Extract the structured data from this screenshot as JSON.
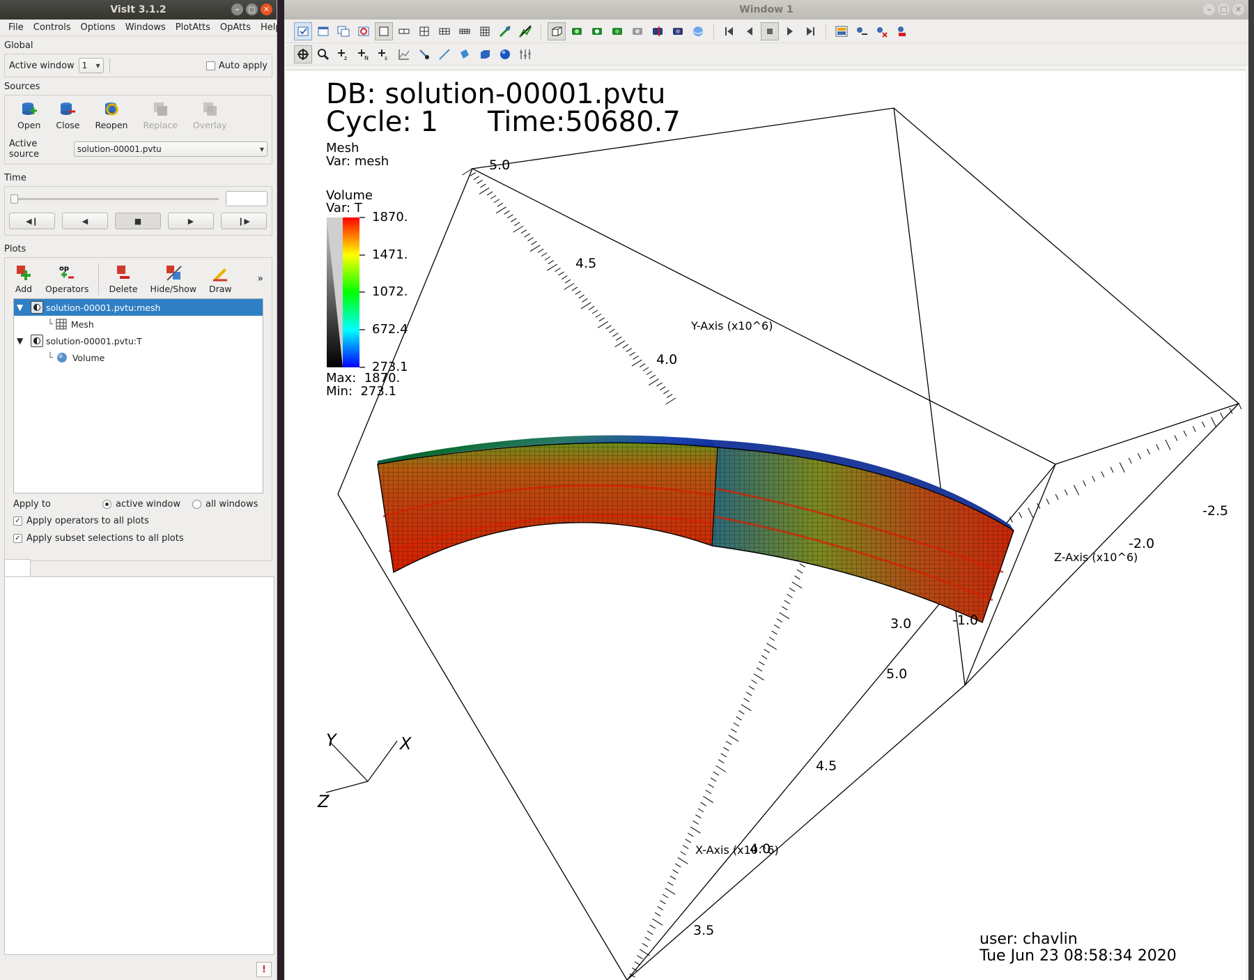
{
  "control_window": {
    "title": "VisIt 3.1.2",
    "menu": [
      "File",
      "Controls",
      "Options",
      "Windows",
      "PlotAtts",
      "OpAtts",
      "Help"
    ],
    "global": {
      "label": "Global",
      "active_window_label": "Active window",
      "active_window_value": "1",
      "auto_apply_label": "Auto apply"
    },
    "sources": {
      "label": "Sources",
      "buttons": [
        "Open",
        "Close",
        "Reopen",
        "Replace",
        "Overlay"
      ],
      "active_source_label": "Active source",
      "active_source_value": "solution-00001.pvtu"
    },
    "time": {
      "label": "Time",
      "buttons": [
        "step-back",
        "play-backward",
        "stop",
        "play",
        "step-forward"
      ]
    },
    "plots": {
      "label": "Plots",
      "buttons": [
        "Add",
        "Operators",
        "Delete",
        "Hide/Show",
        "Draw"
      ],
      "more": "»",
      "items": [
        {
          "name": "solution-00001.pvtu:mesh",
          "child": "Mesh",
          "selected": true
        },
        {
          "name": "solution-00001.pvtu:T",
          "child": "Volume",
          "selected": false
        }
      ],
      "apply_to_label": "Apply to",
      "apply_to_options": [
        "active window",
        "all windows"
      ],
      "apply_operators": "Apply operators to all plots",
      "apply_subset": "Apply subset selections to all plots"
    }
  },
  "viewer_window": {
    "title": "Window 1",
    "db_line": "DB: solution-00001.pvtu",
    "cycle_line": "Cycle: 1",
    "time_line": "Time:50680.7",
    "mesh_legend": {
      "title": "Mesh",
      "var": "Var: mesh"
    },
    "volume_legend": {
      "title": "Volume",
      "var": "Var: T",
      "ticks": [
        "1870.",
        "1471.",
        "1072.",
        "672.4",
        "273.1"
      ],
      "max": "Max:  1870.",
      "min": "Min:  273.1"
    },
    "axes": {
      "y_title": "Y-Axis (x10^6)",
      "z_title": "Z-Axis (x10^6)",
      "x_title": "X-Axis (x10^6)",
      "y_ticks": [
        "5.0",
        "4.5",
        "4.0"
      ],
      "z_ticks": [
        "-2.5",
        "-2.0",
        "-1.0"
      ],
      "x_ticks": [
        "3.0",
        "5.0",
        "4.5",
        "4.0",
        "3.5"
      ]
    },
    "triad": {
      "x": "X",
      "y": "Y",
      "z": "Z"
    },
    "user_line": "user: chavlin",
    "date_line": "Tue Jun 23 08:58:34 2020"
  },
  "colors": {
    "selection": "#2f7fc4",
    "close_button": "#e95420",
    "volume_hot": "#d81e00",
    "volume_cold": "#001aff"
  }
}
